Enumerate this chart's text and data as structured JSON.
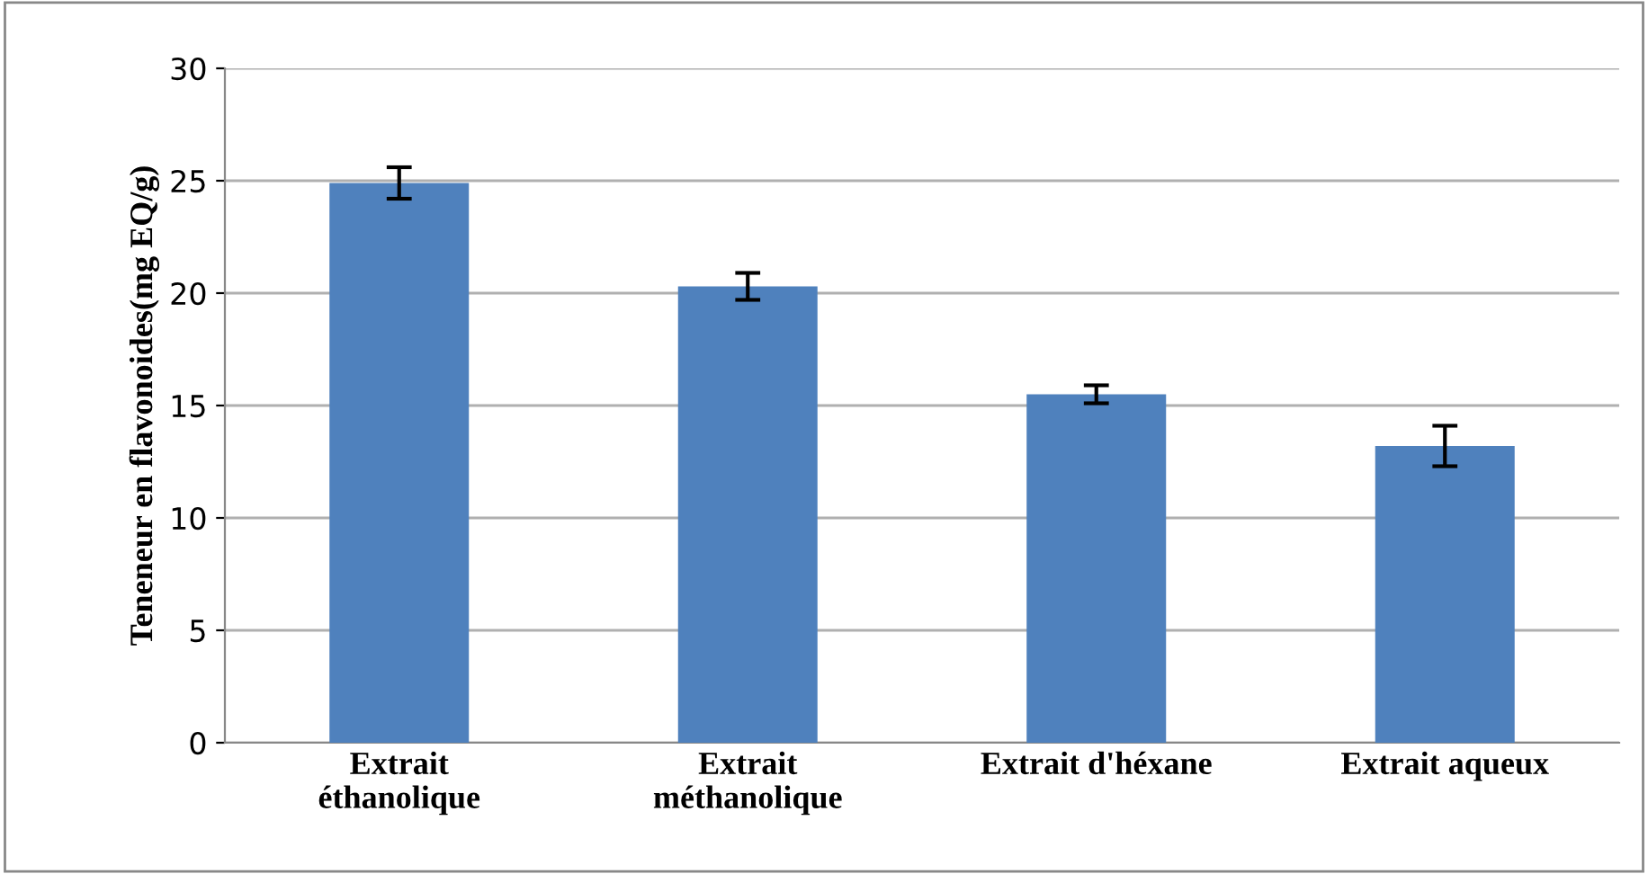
{
  "chart_data": {
    "type": "bar",
    "categories": [
      "Extrait\néthanolique",
      "Extrait\nméthanolique",
      "Extrait d'héxane",
      "Extrait aqueux"
    ],
    "values": [
      24.9,
      20.3,
      15.5,
      13.2
    ],
    "errors": [
      0.7,
      0.6,
      0.4,
      0.9
    ],
    "color": "#4f81bd",
    "ylabel": "Teneneur en flavonoides(mg EQ/g)",
    "ylim": [
      0,
      30
    ],
    "yticks": [
      0,
      5,
      10,
      15,
      20,
      25,
      30
    ],
    "grid": "y"
  }
}
